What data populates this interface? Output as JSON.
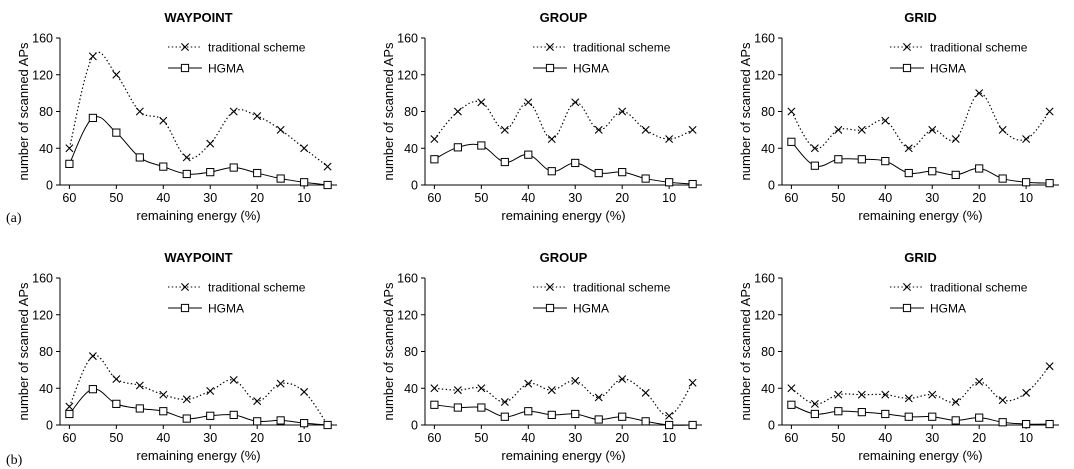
{
  "row_labels": [
    "(a)",
    "(b)"
  ],
  "chart_data": [
    {
      "type": "line",
      "row": 0,
      "col": 0,
      "title": "WAYPOINT",
      "xlabel": "remaining energy (%)",
      "ylabel": "number of scanned APs",
      "x": [
        60,
        55,
        50,
        45,
        40,
        35,
        30,
        25,
        20,
        15,
        10,
        5
      ],
      "xticks": [
        60,
        50,
        40,
        30,
        20,
        10
      ],
      "yticks": [
        0,
        40,
        80,
        120,
        160
      ],
      "xlim": [
        62,
        3
      ],
      "ylim": [
        0,
        160
      ],
      "legend": "top-center",
      "series": [
        {
          "name": "traditional scheme",
          "marker": "x",
          "line": "dotted",
          "values": [
            40,
            140,
            120,
            80,
            70,
            30,
            45,
            80,
            75,
            60,
            40,
            20
          ]
        },
        {
          "name": "HGMA",
          "marker": "square",
          "line": "solid",
          "values": [
            23,
            73,
            57,
            30,
            20,
            12,
            14,
            19,
            13,
            7,
            3,
            0
          ]
        }
      ]
    },
    {
      "type": "line",
      "row": 0,
      "col": 1,
      "title": "GROUP",
      "xlabel": "remaining energy (%)",
      "ylabel": "number of scanned APs",
      "x": [
        60,
        55,
        50,
        45,
        40,
        35,
        30,
        25,
        20,
        15,
        10,
        5
      ],
      "xticks": [
        60,
        50,
        40,
        30,
        20,
        10
      ],
      "yticks": [
        0,
        40,
        80,
        120,
        160
      ],
      "xlim": [
        62,
        3
      ],
      "ylim": [
        0,
        160
      ],
      "legend": "top-center",
      "series": [
        {
          "name": "traditional scheme",
          "marker": "x",
          "line": "dotted",
          "values": [
            50,
            80,
            90,
            60,
            90,
            50,
            90,
            60,
            80,
            60,
            50,
            60
          ]
        },
        {
          "name": "HGMA",
          "marker": "square",
          "line": "solid",
          "values": [
            28,
            41,
            43,
            25,
            33,
            15,
            24,
            13,
            14,
            7,
            3,
            1
          ]
        }
      ]
    },
    {
      "type": "line",
      "row": 0,
      "col": 2,
      "title": "GRID",
      "xlabel": "remaining energy (%)",
      "ylabel": "number of scanned APs",
      "x": [
        60,
        55,
        50,
        45,
        40,
        35,
        30,
        25,
        20,
        15,
        10,
        5
      ],
      "xticks": [
        60,
        50,
        40,
        30,
        20,
        10
      ],
      "yticks": [
        0,
        40,
        80,
        120,
        160
      ],
      "xlim": [
        62,
        3
      ],
      "ylim": [
        0,
        160
      ],
      "legend": "top-center",
      "series": [
        {
          "name": "traditional scheme",
          "marker": "x",
          "line": "dotted",
          "values": [
            80,
            40,
            60,
            60,
            70,
            40,
            60,
            50,
            100,
            60,
            50,
            80
          ]
        },
        {
          "name": "HGMA",
          "marker": "square",
          "line": "solid",
          "values": [
            47,
            21,
            28,
            28,
            26,
            13,
            15,
            11,
            18,
            7,
            3,
            2
          ]
        }
      ]
    },
    {
      "type": "line",
      "row": 1,
      "col": 0,
      "title": "WAYPOINT",
      "xlabel": "remaining energy (%)",
      "ylabel": "number of scanned APs",
      "x": [
        60,
        55,
        50,
        45,
        40,
        35,
        30,
        25,
        20,
        15,
        10,
        5
      ],
      "xticks": [
        60,
        50,
        40,
        30,
        20,
        10
      ],
      "yticks": [
        0,
        40,
        80,
        120,
        160
      ],
      "xlim": [
        62,
        3
      ],
      "ylim": [
        0,
        160
      ],
      "legend": "top-center",
      "series": [
        {
          "name": "traditional scheme",
          "marker": "x",
          "line": "dotted",
          "values": [
            20,
            75,
            50,
            43,
            33,
            28,
            37,
            49,
            26,
            45,
            36,
            0
          ]
        },
        {
          "name": "HGMA",
          "marker": "square",
          "line": "solid",
          "values": [
            12,
            39,
            23,
            18,
            15,
            7,
            10,
            11,
            4,
            5,
            2,
            0
          ]
        }
      ]
    },
    {
      "type": "line",
      "row": 1,
      "col": 1,
      "title": "GROUP",
      "xlabel": "remaining energy (%)",
      "ylabel": "number of scanned APs",
      "x": [
        60,
        55,
        50,
        45,
        40,
        35,
        30,
        25,
        20,
        15,
        10,
        5
      ],
      "xticks": [
        60,
        50,
        40,
        30,
        20,
        10
      ],
      "yticks": [
        0,
        40,
        80,
        120,
        160
      ],
      "xlim": [
        62,
        3
      ],
      "ylim": [
        0,
        160
      ],
      "legend": "top-center",
      "series": [
        {
          "name": "traditional scheme",
          "marker": "x",
          "line": "dotted",
          "values": [
            40,
            38,
            40,
            25,
            45,
            38,
            48,
            30,
            50,
            35,
            10,
            46
          ]
        },
        {
          "name": "HGMA",
          "marker": "square",
          "line": "solid",
          "values": [
            22,
            19,
            19,
            9,
            15,
            11,
            12,
            6,
            9,
            4,
            0,
            0
          ]
        }
      ]
    },
    {
      "type": "line",
      "row": 1,
      "col": 2,
      "title": "GRID",
      "xlabel": "remaining energy (%)",
      "ylabel": "number of scanned APs",
      "x": [
        60,
        55,
        50,
        45,
        40,
        35,
        30,
        25,
        20,
        15,
        10,
        5
      ],
      "xticks": [
        60,
        50,
        40,
        30,
        20,
        10
      ],
      "yticks": [
        0,
        40,
        80,
        120,
        160
      ],
      "xlim": [
        62,
        3
      ],
      "ylim": [
        0,
        160
      ],
      "legend": "top-center",
      "series": [
        {
          "name": "traditional scheme",
          "marker": "x",
          "line": "dotted",
          "values": [
            40,
            23,
            33,
            33,
            33,
            29,
            33,
            25,
            47,
            27,
            35,
            64
          ]
        },
        {
          "name": "HGMA",
          "marker": "square",
          "line": "solid",
          "values": [
            22,
            12,
            15,
            14,
            12,
            9,
            9,
            5,
            8,
            3,
            1,
            1
          ]
        }
      ]
    }
  ]
}
